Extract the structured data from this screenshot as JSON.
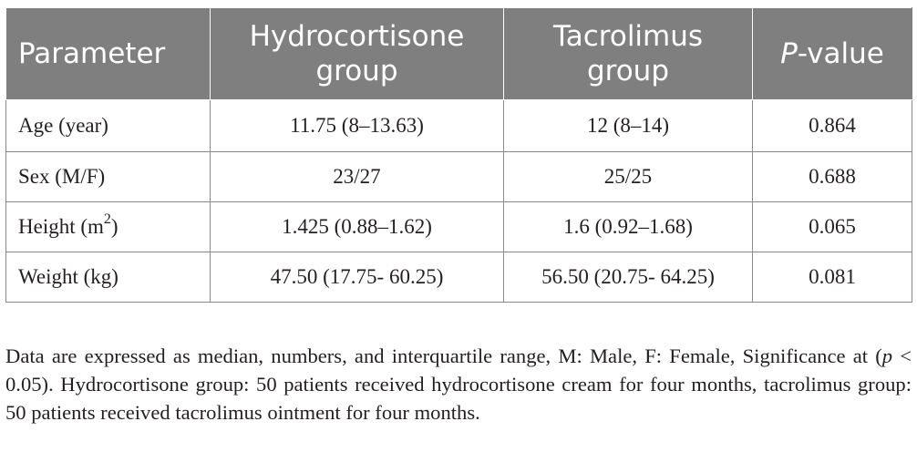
{
  "table": {
    "headers": {
      "parameter": "Parameter",
      "hydrocortisone": "Hydrocortisone group",
      "tacrolimus": "Tacrolimus group",
      "p_prefix": "P",
      "p_suffix": "-value"
    },
    "rows": [
      {
        "parameter": "Age (year)",
        "unit_sup": "",
        "unit_close": "",
        "hydrocortisone": "11.75 (8–13.63)",
        "tacrolimus": "12 (8–14)",
        "p_value": "0.864"
      },
      {
        "parameter": "Sex (M/F)",
        "unit_sup": "",
        "unit_close": "",
        "hydrocortisone": "23/27",
        "tacrolimus": "25/25",
        "p_value": "0.688"
      },
      {
        "parameter": "Height (m",
        "unit_sup": "2",
        "unit_close": ")",
        "hydrocortisone": "1.425 (0.88–1.62)",
        "tacrolimus": "1.6 (0.92–1.68)",
        "p_value": "0.065"
      },
      {
        "parameter": "Weight (kg)",
        "unit_sup": "",
        "unit_close": "",
        "hydrocortisone": "47.50 (17.75- 60.25)",
        "tacrolimus": "56.50 (20.75- 64.25)",
        "p_value": "0.081"
      }
    ]
  },
  "footnote": {
    "part1": "Data are expressed as median, numbers, and interquartile range, M: Male, F: Female, Significance at (",
    "p_symbol": "p",
    "part2": " < 0.05). Hydrocortisone group: 50 patients received hydrocortisone cream for four months, tacrolimus group: 50 patients received tacrolimus ointment for four months."
  }
}
